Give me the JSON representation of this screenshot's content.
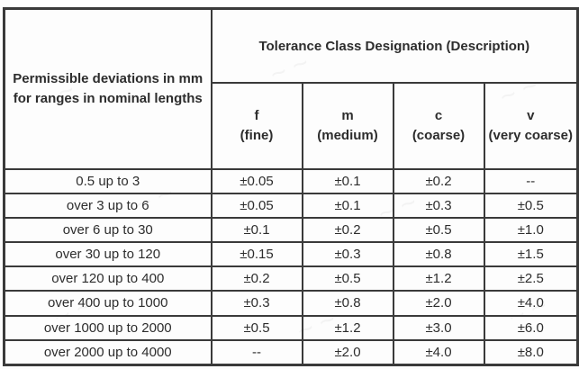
{
  "colors": {
    "border": "#3a3a3a",
    "text": "#2d2d2d",
    "background": "#fdfdfd"
  },
  "table": {
    "row_header": "Permissible deviations in mm\nfor ranges in nominal lengths",
    "group_header": "Tolerance Class Designation (Description)",
    "columns": [
      {
        "code": "f",
        "desc": "(fine)"
      },
      {
        "code": "m",
        "desc": "(medium)"
      },
      {
        "code": "c",
        "desc": "(coarse)"
      },
      {
        "code": "v",
        "desc": "(very coarse)"
      }
    ],
    "rows": [
      {
        "range": "0.5 up to 3",
        "values": [
          "±0.05",
          "±0.1",
          "±0.2",
          "--"
        ]
      },
      {
        "range": "over 3 up to 6",
        "values": [
          "±0.05",
          "±0.1",
          "±0.3",
          "±0.5"
        ]
      },
      {
        "range": "over 6 up to 30",
        "values": [
          "±0.1",
          "±0.2",
          "±0.5",
          "±1.0"
        ]
      },
      {
        "range": "over 30 up to 120",
        "values": [
          "±0.15",
          "±0.3",
          "±0.8",
          "±1.5"
        ]
      },
      {
        "range": "over 120 up to 400",
        "values": [
          "±0.2",
          "±0.5",
          "±1.2",
          "±2.5"
        ]
      },
      {
        "range": "over 400 up to 1000",
        "values": [
          "±0.3",
          "±0.8",
          "±2.0",
          "±4.0"
        ]
      },
      {
        "range": "over 1000 up to 2000",
        "values": [
          "±0.5",
          "±1.2",
          "±3.0",
          "±6.0"
        ]
      },
      {
        "range": "over 2000 up to 4000",
        "values": [
          "--",
          "±2.0",
          "±4.0",
          "±8.0"
        ]
      }
    ]
  }
}
